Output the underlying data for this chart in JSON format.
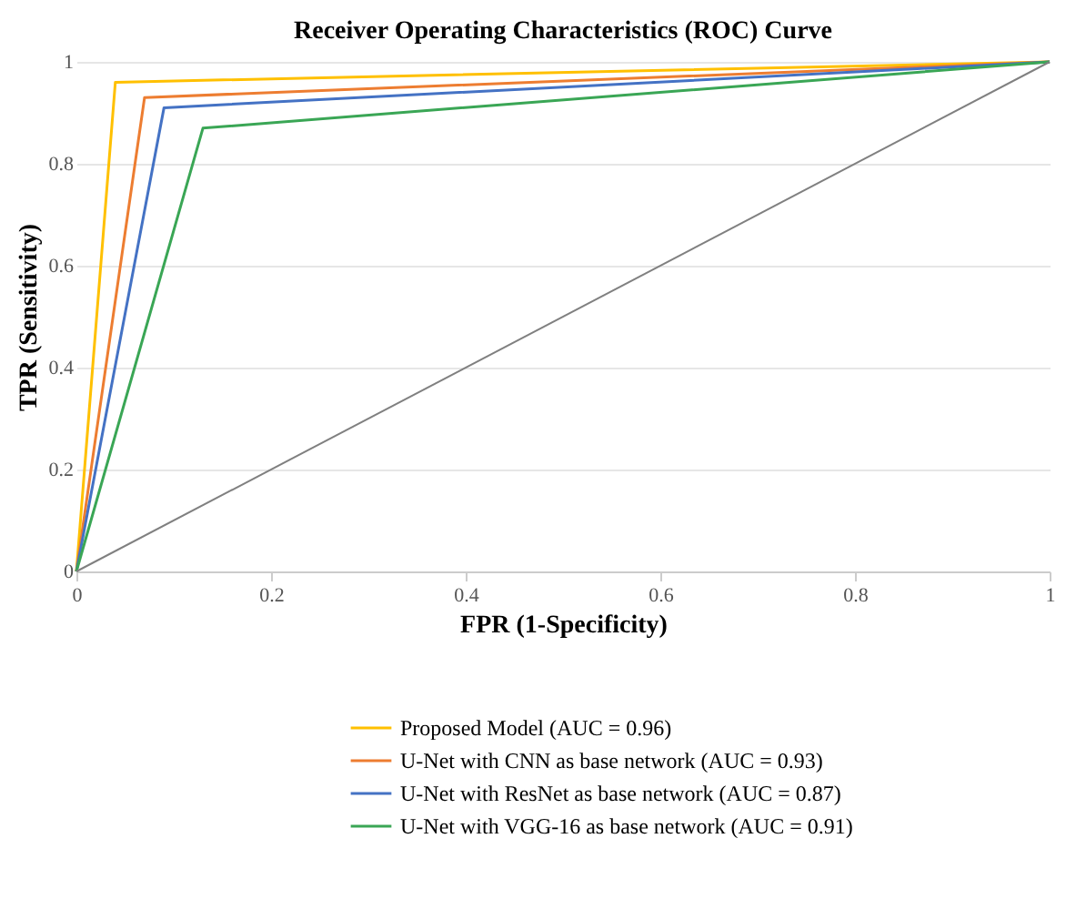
{
  "chart_data": {
    "type": "line",
    "title": "Receiver Operating Characteristics (ROC) Curve",
    "xlabel": "FPR (1-Specificity)",
    "ylabel": "TPR (Sensitivity)",
    "xlim": [
      0,
      1
    ],
    "xticks": [
      0,
      0.2,
      0.4,
      0.6,
      0.8,
      1
    ],
    "ylim": [
      0,
      1
    ],
    "yticks": [
      0,
      0.2,
      0.4,
      0.6,
      0.8,
      1
    ],
    "grid": "y",
    "legend": "bottom",
    "marker": "none",
    "line_style": "solid",
    "series": [
      {
        "name": "Proposed Model (AUC = 0.96)",
        "color": "#ffc000",
        "x": [
          0,
          0.04,
          1
        ],
        "values": [
          0,
          0.96,
          1
        ]
      },
      {
        "name": "U-Net with CNN as base network (AUC = 0.93)",
        "color": "#ed7d31",
        "x": [
          0,
          0.07,
          1
        ],
        "values": [
          0,
          0.93,
          1
        ]
      },
      {
        "name": "U-Net with ResNet as base network (AUC = 0.87)",
        "color": "#4472c4",
        "x": [
          0,
          0.09,
          1
        ],
        "values": [
          0,
          0.91,
          1
        ]
      },
      {
        "name": "U-Net with VGG-16 as base network (AUC = 0.91)",
        "color": "#3aa655",
        "x": [
          0,
          0.13,
          1
        ],
        "values": [
          0,
          0.87,
          1
        ]
      },
      {
        "color": "#808080",
        "x": [
          0,
          1
        ],
        "values": [
          0,
          1
        ]
      }
    ]
  }
}
